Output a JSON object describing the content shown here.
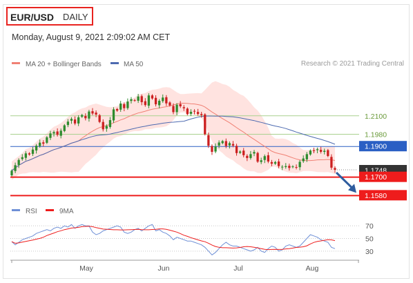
{
  "header": {
    "symbol": "EUR/USD",
    "period": "DAILY"
  },
  "timestamp": "Monday, August 9, 2021 2:09:02 AM CET",
  "credit": "Research © 2021 Trading Central",
  "colors": {
    "bollinger_band": "#ffd9d6",
    "ma20": "#f08074",
    "ma50": "#4d6ab0",
    "bull_candle": "#2e8b2e",
    "bear_candle": "#cc2020",
    "level_green": "#a9d18e",
    "level_blue": "#2a5fc4",
    "level_red": "#ee1c1c",
    "current_tag": "#333333",
    "projection_arrow": "#2e5c9e",
    "rsi": "#6e8fd6",
    "rsi_ma": "#ee1c1c"
  },
  "chart_data": [
    {
      "type": "candlestick",
      "title": "",
      "legend": [
        {
          "name": "MA 20 + Bollinger Bands",
          "color": "#f08074"
        },
        {
          "name": "MA 50",
          "color": "#4d6ab0"
        }
      ],
      "legend_position": "top-left",
      "x_tick_labels": [
        "May",
        "Jun",
        "Jul",
        "Aug"
      ],
      "ylim": [
        1.155,
        1.236
      ],
      "candle_count": 93,
      "close": [
        1.1742,
        1.1778,
        1.1812,
        1.183,
        1.1855,
        1.1848,
        1.188,
        1.1905,
        1.1925,
        1.1918,
        1.196,
        1.1985,
        1.1994,
        1.1976,
        1.2003,
        1.2038,
        1.2062,
        1.208,
        1.205,
        1.209,
        1.2105,
        1.2084,
        1.2128,
        1.2115,
        1.2108,
        1.206,
        1.2012,
        1.2033,
        1.2072,
        1.2142,
        1.2134,
        1.218,
        1.215,
        1.2193,
        1.2208,
        1.22,
        1.2226,
        1.2189,
        1.217,
        1.2233,
        1.2213,
        1.2175,
        1.2198,
        1.2219,
        1.2181,
        1.2168,
        1.2124,
        1.2172,
        1.2162,
        1.2149,
        1.2111,
        1.2126,
        1.2129,
        1.2112,
        1.2105,
        1.198,
        1.1905,
        1.1865,
        1.19,
        1.1926,
        1.1935,
        1.1903,
        1.1922,
        1.1906,
        1.1857,
        1.1867,
        1.1843,
        1.1825,
        1.185,
        1.1864,
        1.1801,
        1.181,
        1.1837,
        1.1802,
        1.1788,
        1.1798,
        1.1772,
        1.1768,
        1.1772,
        1.176,
        1.177,
        1.1765,
        1.18,
        1.1822,
        1.185,
        1.1873,
        1.187,
        1.1882,
        1.1865,
        1.1872,
        1.1838,
        1.1762,
        1.1748
      ],
      "indicators": [
        "MA 20",
        "Bollinger Bands",
        "MA 50"
      ],
      "horizontal_levels": [
        {
          "value": "1.2100",
          "color": "#a9d18e",
          "label_boxed": false
        },
        {
          "value": "1.1980",
          "color": "#a9d18e",
          "label_boxed": false
        },
        {
          "value": "1.1900",
          "color": "#2a5fc4",
          "label_boxed": true
        },
        {
          "value": "1.1748",
          "color": "#333333",
          "label_boxed": true,
          "role": "last price"
        },
        {
          "value": "1.1700",
          "color": "#ee1c1c",
          "label_boxed": true
        },
        {
          "value": "1.1580",
          "color": "#ee1c1c",
          "label_boxed": true
        }
      ],
      "projection_arrow": {
        "from": 1.1748,
        "to": 1.158,
        "direction": "down"
      }
    },
    {
      "type": "line",
      "title": "",
      "series": [
        {
          "name": "RSI",
          "color": "#6e8fd6"
        },
        {
          "name": "9MA",
          "color": "#ee1c1c"
        }
      ],
      "legend_position": "top-left",
      "ylim": [
        20,
        80
      ],
      "y_ticks": [
        "70",
        "50",
        "30"
      ],
      "rsi_values": [
        45,
        40,
        44,
        48,
        50,
        52,
        54,
        58,
        60,
        62,
        64,
        62,
        66,
        68,
        66,
        70,
        68,
        72,
        66,
        70,
        72,
        70,
        70,
        60,
        56,
        58,
        62,
        64,
        66,
        68,
        70,
        68,
        60,
        58,
        60,
        64,
        66,
        62,
        66,
        70,
        72,
        62,
        64,
        60,
        58,
        54,
        48,
        52,
        50,
        48,
        46,
        46,
        44,
        42,
        40,
        36,
        30,
        24,
        28,
        34,
        40,
        44,
        40,
        38,
        38,
        36,
        34,
        32,
        30,
        32,
        36,
        30,
        28,
        34,
        38,
        36,
        30,
        32,
        38,
        40,
        38,
        36,
        38,
        44,
        50,
        56,
        54,
        52,
        48,
        46,
        44,
        36,
        34
      ]
    }
  ]
}
